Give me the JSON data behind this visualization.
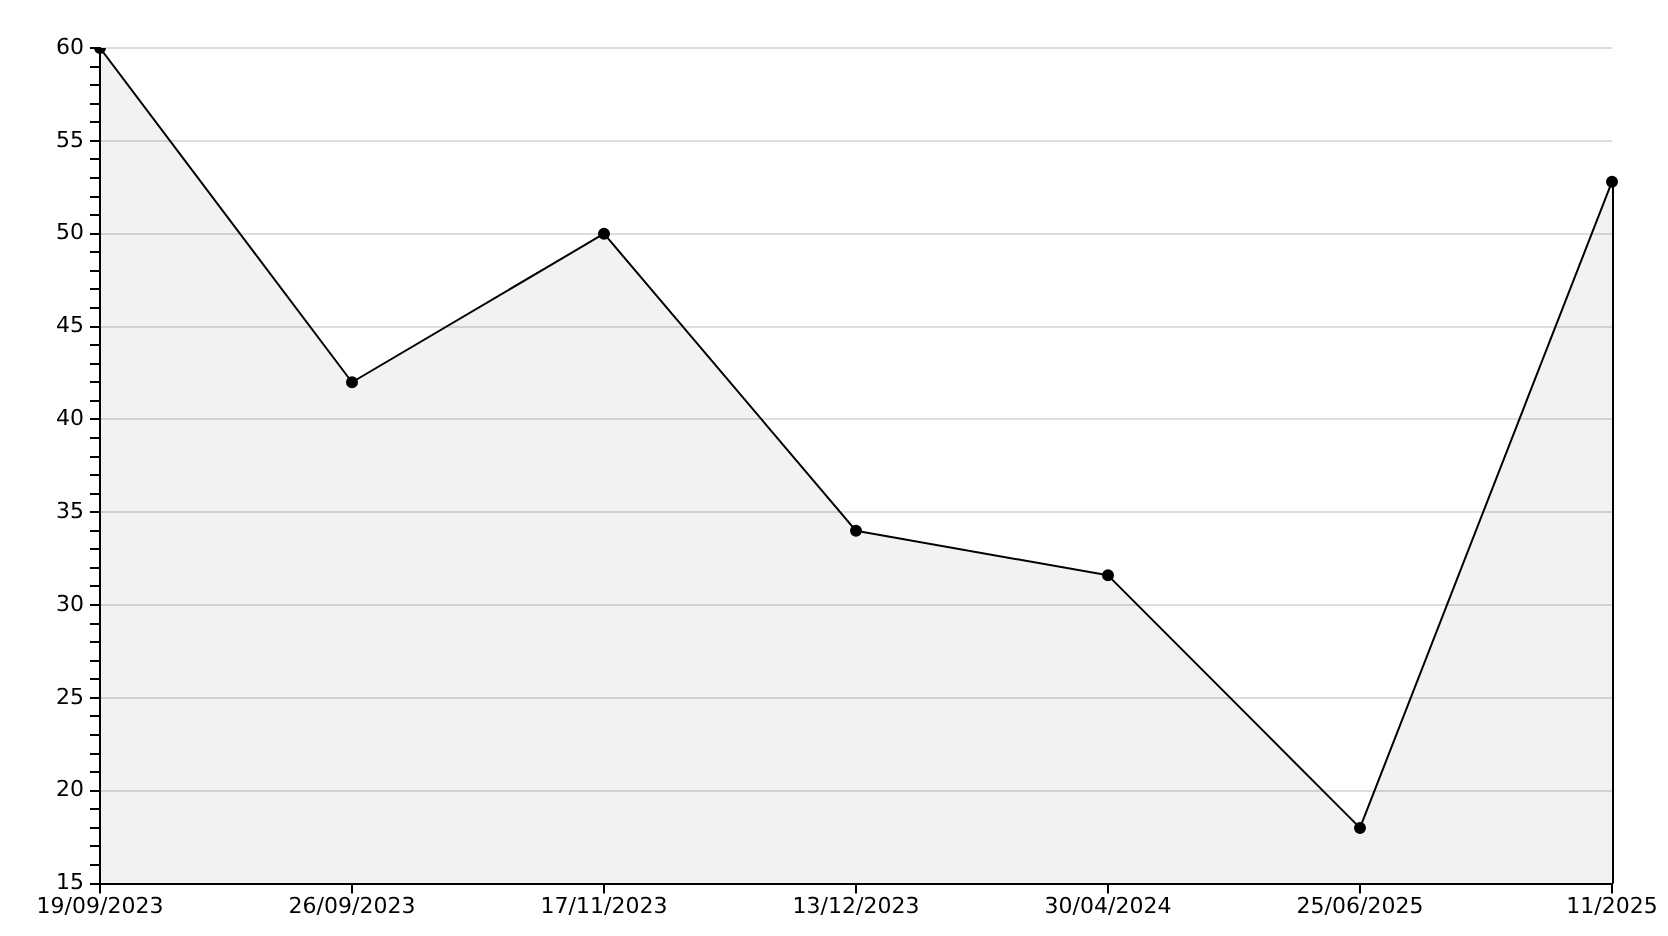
{
  "chart_data": {
    "type": "area",
    "categories": [
      "19/09/2023",
      "26/09/2023",
      "17/11/2023",
      "13/12/2023",
      "30/04/2024",
      "25/06/2025",
      "11/2025"
    ],
    "series": [
      {
        "color": "#000000",
        "values": [
          60,
          42,
          50,
          34,
          31.6,
          18,
          52.8
        ]
      }
    ],
    "ylim": [
      15,
      60
    ],
    "yticks": [
      15,
      {
        "value": 16,
        "label": null
      },
      {
        "value": 17,
        "label": null
      },
      {
        "value": 18,
        "label": null
      },
      {
        "value": 19,
        "label": null
      },
      20,
      {
        "value": 21,
        "label": null
      },
      {
        "value": 22,
        "label": null
      },
      {
        "value": 23,
        "label": null
      },
      {
        "value": 24,
        "label": null
      },
      25,
      {
        "value": 26,
        "label": null
      },
      {
        "value": 27,
        "label": null
      },
      {
        "value": 28,
        "label": null
      },
      {
        "value": 29,
        "label": null
      },
      30,
      {
        "value": 31,
        "label": null
      },
      {
        "value": 32,
        "label": null
      },
      {
        "value": 33,
        "label": null
      },
      {
        "value": 34,
        "label": null
      },
      35,
      {
        "value": 36,
        "label": null
      },
      {
        "value": 37,
        "label": null
      },
      {
        "value": 38,
        "label": null
      },
      {
        "value": 39,
        "label": null
      },
      40,
      {
        "value": 41,
        "label": null
      },
      {
        "value": 42,
        "label": null
      },
      {
        "value": 43,
        "label": null
      },
      {
        "value": 44,
        "label": null
      },
      45,
      {
        "value": 46,
        "label": null
      },
      {
        "value": 47,
        "label": null
      },
      {
        "value": 48,
        "label": null
      },
      {
        "value": 49,
        "label": null
      },
      50,
      {
        "value": 51,
        "label": null
      },
      {
        "value": 52,
        "label": null
      },
      {
        "value": 53,
        "label": null
      },
      {
        "value": 54,
        "label": null
      },
      55,
      {
        "value": 56,
        "label": null
      },
      {
        "value": 57,
        "label": null
      },
      {
        "value": 58,
        "label": null
      },
      {
        "value": 59,
        "label": null
      },
      60
    ],
    "grid": "y",
    "marker": "circle",
    "line_style": "solid"
  }
}
